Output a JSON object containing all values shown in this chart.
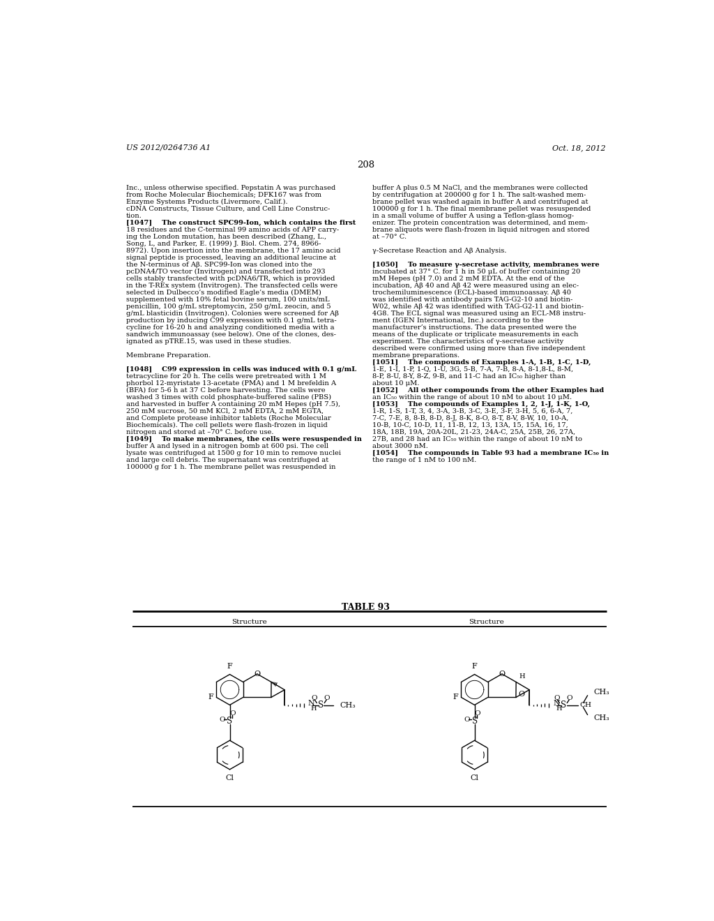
{
  "page_number": "208",
  "patent_number": "US 2012/0264736 A1",
  "patent_date": "Oct. 18, 2012",
  "background_color": "#ffffff",
  "table_title": "TABLE 93",
  "col_header": "Structure",
  "left_col_lines": [
    "Inc., unless otherwise specified. Pepstatin A was purchased",
    "from Roche Molecular Biochemicals; DFK167 was from",
    "Enzyme Systems Products (Livermore, Calif.).",
    "cDNA Constructs, Tissue Culture, and Cell Line Construc-",
    "tion.",
    "[1047]    The construct SPC99-Ion, which contains the first",
    "18 residues and the C-terminal 99 amino acids of APP carry-",
    "ing the London mutation, has been described (Zhang, L.,",
    "Song, L, and Parker, E. (1999) J. Biol. Chem. 274, 8966-",
    "8972). Upon insertion into the membrane, the 17 amino acid",
    "signal peptide is processed, leaving an additional leucine at",
    "the N-terminus of Aβ. SPC99-Ion was cloned into the",
    "pcDNA4/TO vector (Invitrogen) and transfected into 293",
    "cells stably transfected with pcDNA6/TR, which is provided",
    "in the T-REx system (Invitrogen). The transfected cells were",
    "selected in Dulbecco’s modified Eagle’s media (DMEM)",
    "supplemented with 10% fetal bovine serum, 100 units/mL",
    "penicillin, 100 g/mL streptomycin, 250 g/mL zeocin, and 5",
    "g/mL blasticidin (Invitrogen). Colonies were screened for Aβ",
    "production by inducing C99 expression with 0.1 g/mL tetra-",
    "cycline for 16-20 h and analyzing conditioned media with a",
    "sandwich immunoassay (see below). One of the clones, des-",
    "ignated as pTRE.15, was used in these studies.",
    "",
    "Membrane Preparation.",
    "",
    "[1048]    C99 expression in cells was induced with 0.1 g/mL",
    "tetracycline for 20 h. The cells were pretreated with 1 M",
    "phorbol 12-myristate 13-acetate (PMA) and 1 M brefeldin A",
    "(BFA) for 5-6 h at 37 C before harvesting. The cells were",
    "washed 3 times with cold phosphate-buffered saline (PBS)",
    "and harvested in buffer A containing 20 mM Hepes (pH 7.5),",
    "250 mM sucrose, 50 mM KCl, 2 mM EDTA, 2 mM EGTA,",
    "and Complete protease inhibitor tablets (Roche Molecular",
    "Biochemicals). The cell pellets were flash-frozen in liquid",
    "nitrogen and stored at –70° C. before use.",
    "[1049]    To make membranes, the cells were resuspended in",
    "buffer A and lysed in a nitrogen bomb at 600 psi. The cell",
    "lysate was centrifuged at 1500 g for 10 min to remove nuclei",
    "and large cell debris. The supernatant was centrifuged at",
    "100000 g for 1 h. The membrane pellet was resuspended in"
  ],
  "right_col_lines": [
    "buffer A plus 0.5 M NaCl, and the membranes were collected",
    "by centrifugation at 200000 g for 1 h. The salt-washed mem-",
    "brane pellet was washed again in buffer A and centrifuged at",
    "100000 g for 1 h. The final membrane pellet was resuspended",
    "in a small volume of buffer A using a Teflon-glass homog-",
    "enizer. The protein concentration was determined, and mem-",
    "brane aliquots were flash-frozen in liquid nitrogen and stored",
    "at –70° C.",
    "",
    "γ-Secretase Reaction and Aβ Analysis.",
    "",
    "[1050]    To measure γ-secretase activity, membranes were",
    "incubated at 37° C. for 1 h in 50 μL of buffer containing 20",
    "mM Hepes (pH 7.0) and 2 mM EDTA. At the end of the",
    "incubation, Aβ 40 and Aβ 42 were measured using an elec-",
    "trochemiluminescence (ECL)-based immunoassay. Aβ 40",
    "was identified with antibody pairs TAG-G2-10 and biotin-",
    "W02, while Aβ 42 was identified with TAG-G2-11 and biotin-",
    "4G8. The ECL signal was measured using an ECL-M8 instru-",
    "ment (IGEN International, Inc.) according to the",
    "manufacturer’s instructions. The data presented were the",
    "means of the duplicate or triplicate measurements in each",
    "experiment. The characteristics of γ-secretase activity",
    "described were confirmed using more than five independent",
    "membrane preparations.",
    "[1051]    The compounds of Examples 1-A, 1-B, 1-C, 1-D,",
    "1-E, 1-I, 1-P, 1-Q, 1-U, 3G, 5-B, 7-A, 7-B, 8-A, 8-1,8-L, 8-M,",
    "8-P, 8-U, 8-Y, 8-Z, 9-B, and 11-C had an IC₅₀ higher than",
    "about 10 μM.",
    "[1052]    All other compounds from the other Examples had",
    "an IC₅₀ within the range of about 10 nM to about 10 μM.",
    "[1053]    The compounds of Examples 1, 2, 1-J, 1-K, 1-O,",
    "1-R, 1-S, 1-T, 3, 4, 3-A, 3-B, 3-C, 3-E, 3-F, 3-H, 5, 6, 6-A, 7,",
    "7-C, 7-E, 8, 8-B, 8-D, 8-J, 8-K, 8-O, 8-T, 8-V, 8-W, 10, 10-A,",
    "10-B, 10-C, 10-D, 11, 11-B, 12, 13, 13A, 15, 15A, 16, 17,",
    "18A, 18B, 19A, 20A-20L, 21-23, 24A-C, 25A, 25B, 26, 27A,",
    "27B, and 28 had an IC₅₀ within the range of about 10 nM to",
    "about 3000 nM.",
    "[1054]    The compounds in Table 93 had a membrane IC₅₀ in",
    "the range of 1 nM to 100 nM."
  ]
}
